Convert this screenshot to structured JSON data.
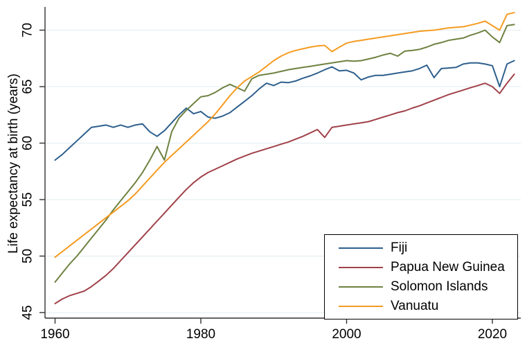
{
  "chart_data": {
    "type": "line",
    "title": "",
    "xlabel": "",
    "ylabel": "Life expectancy at birth (years)",
    "grid": "horizontal",
    "legend_position": "bottom-right",
    "xlim": [
      1958.6,
      2023.9
    ],
    "ylim": [
      44.5,
      72.1
    ],
    "x_ticks": [
      1960,
      1980,
      2000,
      2020
    ],
    "y_ticks": [
      45,
      50,
      55,
      60,
      65,
      70
    ],
    "colors": {
      "grid": "#e2ecf1",
      "axis": "#303030",
      "text": "#000000",
      "legend_border": "#000000"
    },
    "x": [
      1960,
      1961,
      1962,
      1963,
      1964,
      1965,
      1966,
      1967,
      1968,
      1969,
      1970,
      1971,
      1972,
      1973,
      1974,
      1975,
      1976,
      1977,
      1978,
      1979,
      1980,
      1981,
      1982,
      1983,
      1984,
      1985,
      1986,
      1987,
      1988,
      1989,
      1990,
      1991,
      1992,
      1993,
      1994,
      1995,
      1996,
      1997,
      1998,
      1999,
      2000,
      2001,
      2002,
      2003,
      2004,
      2005,
      2006,
      2007,
      2008,
      2009,
      2010,
      2011,
      2012,
      2013,
      2014,
      2015,
      2016,
      2017,
      2018,
      2019,
      2020,
      2021,
      2022,
      2023
    ],
    "series": [
      {
        "name": "Fiji",
        "color": "#2d5f8c",
        "values": [
          58.5,
          59.0,
          59.6,
          60.2,
          60.8,
          61.4,
          61.5,
          61.6,
          61.4,
          61.6,
          61.4,
          61.6,
          61.7,
          61.0,
          60.6,
          61.1,
          61.8,
          62.5,
          63.1,
          62.6,
          62.8,
          62.3,
          62.2,
          62.4,
          62.7,
          63.2,
          63.7,
          64.2,
          64.8,
          65.3,
          65.1,
          65.4,
          65.35,
          65.5,
          65.75,
          65.95,
          66.2,
          66.5,
          66.75,
          66.4,
          66.45,
          66.2,
          65.6,
          65.85,
          66.0,
          66.0,
          66.1,
          66.2,
          66.3,
          66.4,
          66.6,
          66.9,
          65.8,
          66.6,
          66.65,
          66.7,
          67.0,
          67.1,
          67.1,
          67.0,
          66.85,
          65.0,
          67.0,
          67.3
        ]
      },
      {
        "name": "Papua New Guinea",
        "color": "#a04149",
        "values": [
          45.8,
          46.2,
          46.5,
          46.7,
          46.9,
          47.3,
          47.8,
          48.3,
          48.9,
          49.6,
          50.3,
          51.0,
          51.7,
          52.4,
          53.1,
          53.8,
          54.5,
          55.2,
          55.9,
          56.5,
          57.0,
          57.4,
          57.7,
          58.0,
          58.3,
          58.6,
          58.85,
          59.1,
          59.3,
          59.5,
          59.7,
          59.9,
          60.1,
          60.35,
          60.6,
          60.9,
          61.2,
          60.5,
          61.4,
          61.5,
          61.6,
          61.7,
          61.8,
          61.9,
          62.1,
          62.3,
          62.5,
          62.7,
          62.85,
          63.1,
          63.3,
          63.55,
          63.8,
          64.05,
          64.3,
          64.5,
          64.7,
          64.9,
          65.1,
          65.3,
          65.0,
          64.4,
          65.3,
          66.1
        ]
      },
      {
        "name": "Solomon Islands",
        "color": "#6e8140",
        "values": [
          47.7,
          48.5,
          49.3,
          50.0,
          50.8,
          51.6,
          52.4,
          53.2,
          54.1,
          54.9,
          55.7,
          56.5,
          57.4,
          58.5,
          59.7,
          58.5,
          61.0,
          62.2,
          62.9,
          63.5,
          64.1,
          64.2,
          64.5,
          64.9,
          65.2,
          64.9,
          64.6,
          65.7,
          66.0,
          66.1,
          66.2,
          66.35,
          66.5,
          66.6,
          66.7,
          66.8,
          66.9,
          67.0,
          67.1,
          67.2,
          67.3,
          67.25,
          67.3,
          67.45,
          67.6,
          67.8,
          67.95,
          67.7,
          68.15,
          68.2,
          68.3,
          68.5,
          68.75,
          68.9,
          69.1,
          69.2,
          69.3,
          69.55,
          69.75,
          70.0,
          69.4,
          68.9,
          70.4,
          70.5
        ]
      },
      {
        "name": "Vanuatu",
        "color": "#f59b20",
        "values": [
          49.9,
          50.4,
          50.9,
          51.4,
          51.9,
          52.4,
          52.9,
          53.4,
          53.9,
          54.4,
          54.9,
          55.5,
          56.2,
          56.9,
          57.6,
          58.3,
          58.9,
          59.5,
          60.1,
          60.7,
          61.3,
          61.9,
          62.6,
          63.4,
          64.2,
          64.9,
          65.5,
          65.9,
          66.3,
          66.8,
          67.3,
          67.7,
          68.0,
          68.2,
          68.35,
          68.5,
          68.6,
          68.65,
          68.1,
          68.5,
          68.85,
          69.0,
          69.1,
          69.2,
          69.3,
          69.4,
          69.5,
          69.6,
          69.7,
          69.8,
          69.9,
          69.95,
          70.0,
          70.1,
          70.2,
          70.25,
          70.3,
          70.45,
          70.6,
          70.8,
          70.4,
          70.0,
          71.4,
          71.55
        ]
      }
    ]
  }
}
